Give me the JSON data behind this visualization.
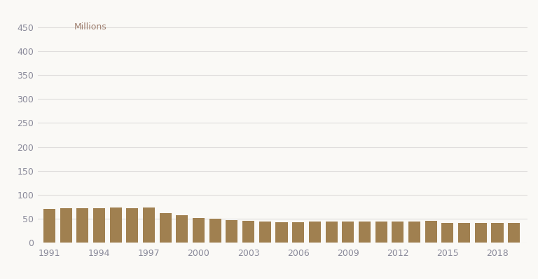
{
  "years": [
    1991,
    1992,
    1993,
    1994,
    1995,
    1996,
    1997,
    1998,
    1999,
    2000,
    2001,
    2002,
    2003,
    2004,
    2005,
    2006,
    2007,
    2008,
    2009,
    2010,
    2011,
    2012,
    2013,
    2014,
    2015,
    2016,
    2017,
    2018,
    2019
  ],
  "values": [
    70,
    72,
    72,
    72,
    74,
    72,
    74,
    62,
    57,
    52,
    50,
    47,
    46,
    44,
    43,
    43,
    44,
    44,
    44,
    44,
    44,
    45,
    44,
    46,
    42,
    42,
    42,
    41,
    41
  ],
  "bar_color": "#a08050",
  "millions_label": "Millions",
  "yticks": [
    0,
    50,
    100,
    150,
    200,
    250,
    300,
    350,
    400,
    450
  ],
  "xticks": [
    1991,
    1994,
    1997,
    2000,
    2003,
    2006,
    2009,
    2012,
    2015,
    2018
  ],
  "ylim": [
    0,
    460
  ],
  "xlim": [
    1990.3,
    2019.8
  ],
  "background_color": "#faf9f6",
  "grid_color": "#e0dedd",
  "tick_label_color": "#8a8a9a",
  "millions_color": "#a08070",
  "bar_width": 0.72
}
